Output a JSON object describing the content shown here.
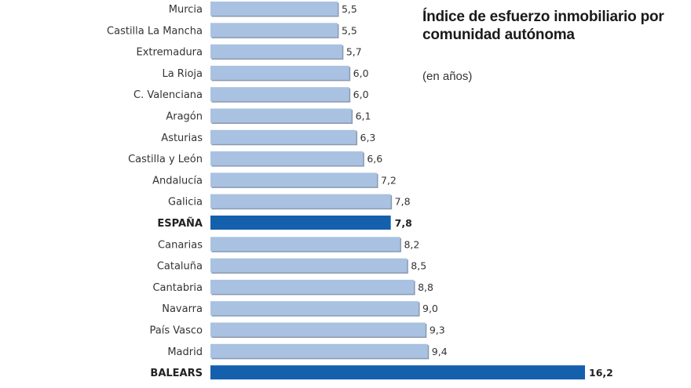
{
  "chart_data": {
    "type": "bar",
    "orientation": "horizontal",
    "title": "Índice de esfuerzo inmobiliario por comunidad autónoma",
    "subtitle": "(en años)",
    "categories": [
      "Murcia",
      "Castilla La Mancha",
      "Extremadura",
      "La Rioja",
      "C. Valenciana",
      "Aragón",
      "Asturias",
      "Castilla y León",
      "Andalucía",
      "Galicia",
      "ESPAÑA",
      "Canarias",
      "Cataluña",
      "Cantabria",
      "Navarra",
      "País Vasco",
      "Madrid",
      "BALEARS"
    ],
    "values": [
      5.5,
      5.5,
      5.7,
      6.0,
      6.0,
      6.1,
      6.3,
      6.6,
      7.2,
      7.8,
      7.8,
      8.2,
      8.5,
      8.8,
      9.0,
      9.3,
      9.4,
      16.2
    ],
    "value_labels": [
      "5,5",
      "5,5",
      "5,7",
      "6,0",
      "6,0",
      "6,1",
      "6,3",
      "6,6",
      "7,2",
      "7,8",
      "7,8",
      "8,2",
      "8,5",
      "8,8",
      "9,0",
      "9,3",
      "9,4",
      "16,2"
    ],
    "highlighted": [
      "ESPAÑA",
      "BALEARS"
    ],
    "xlim": [
      0,
      16.2
    ],
    "grid": false,
    "colors": {
      "bar": "#a9c2e2",
      "bar_shadow": "#8a9aae",
      "highlight": "#1560ad"
    }
  }
}
